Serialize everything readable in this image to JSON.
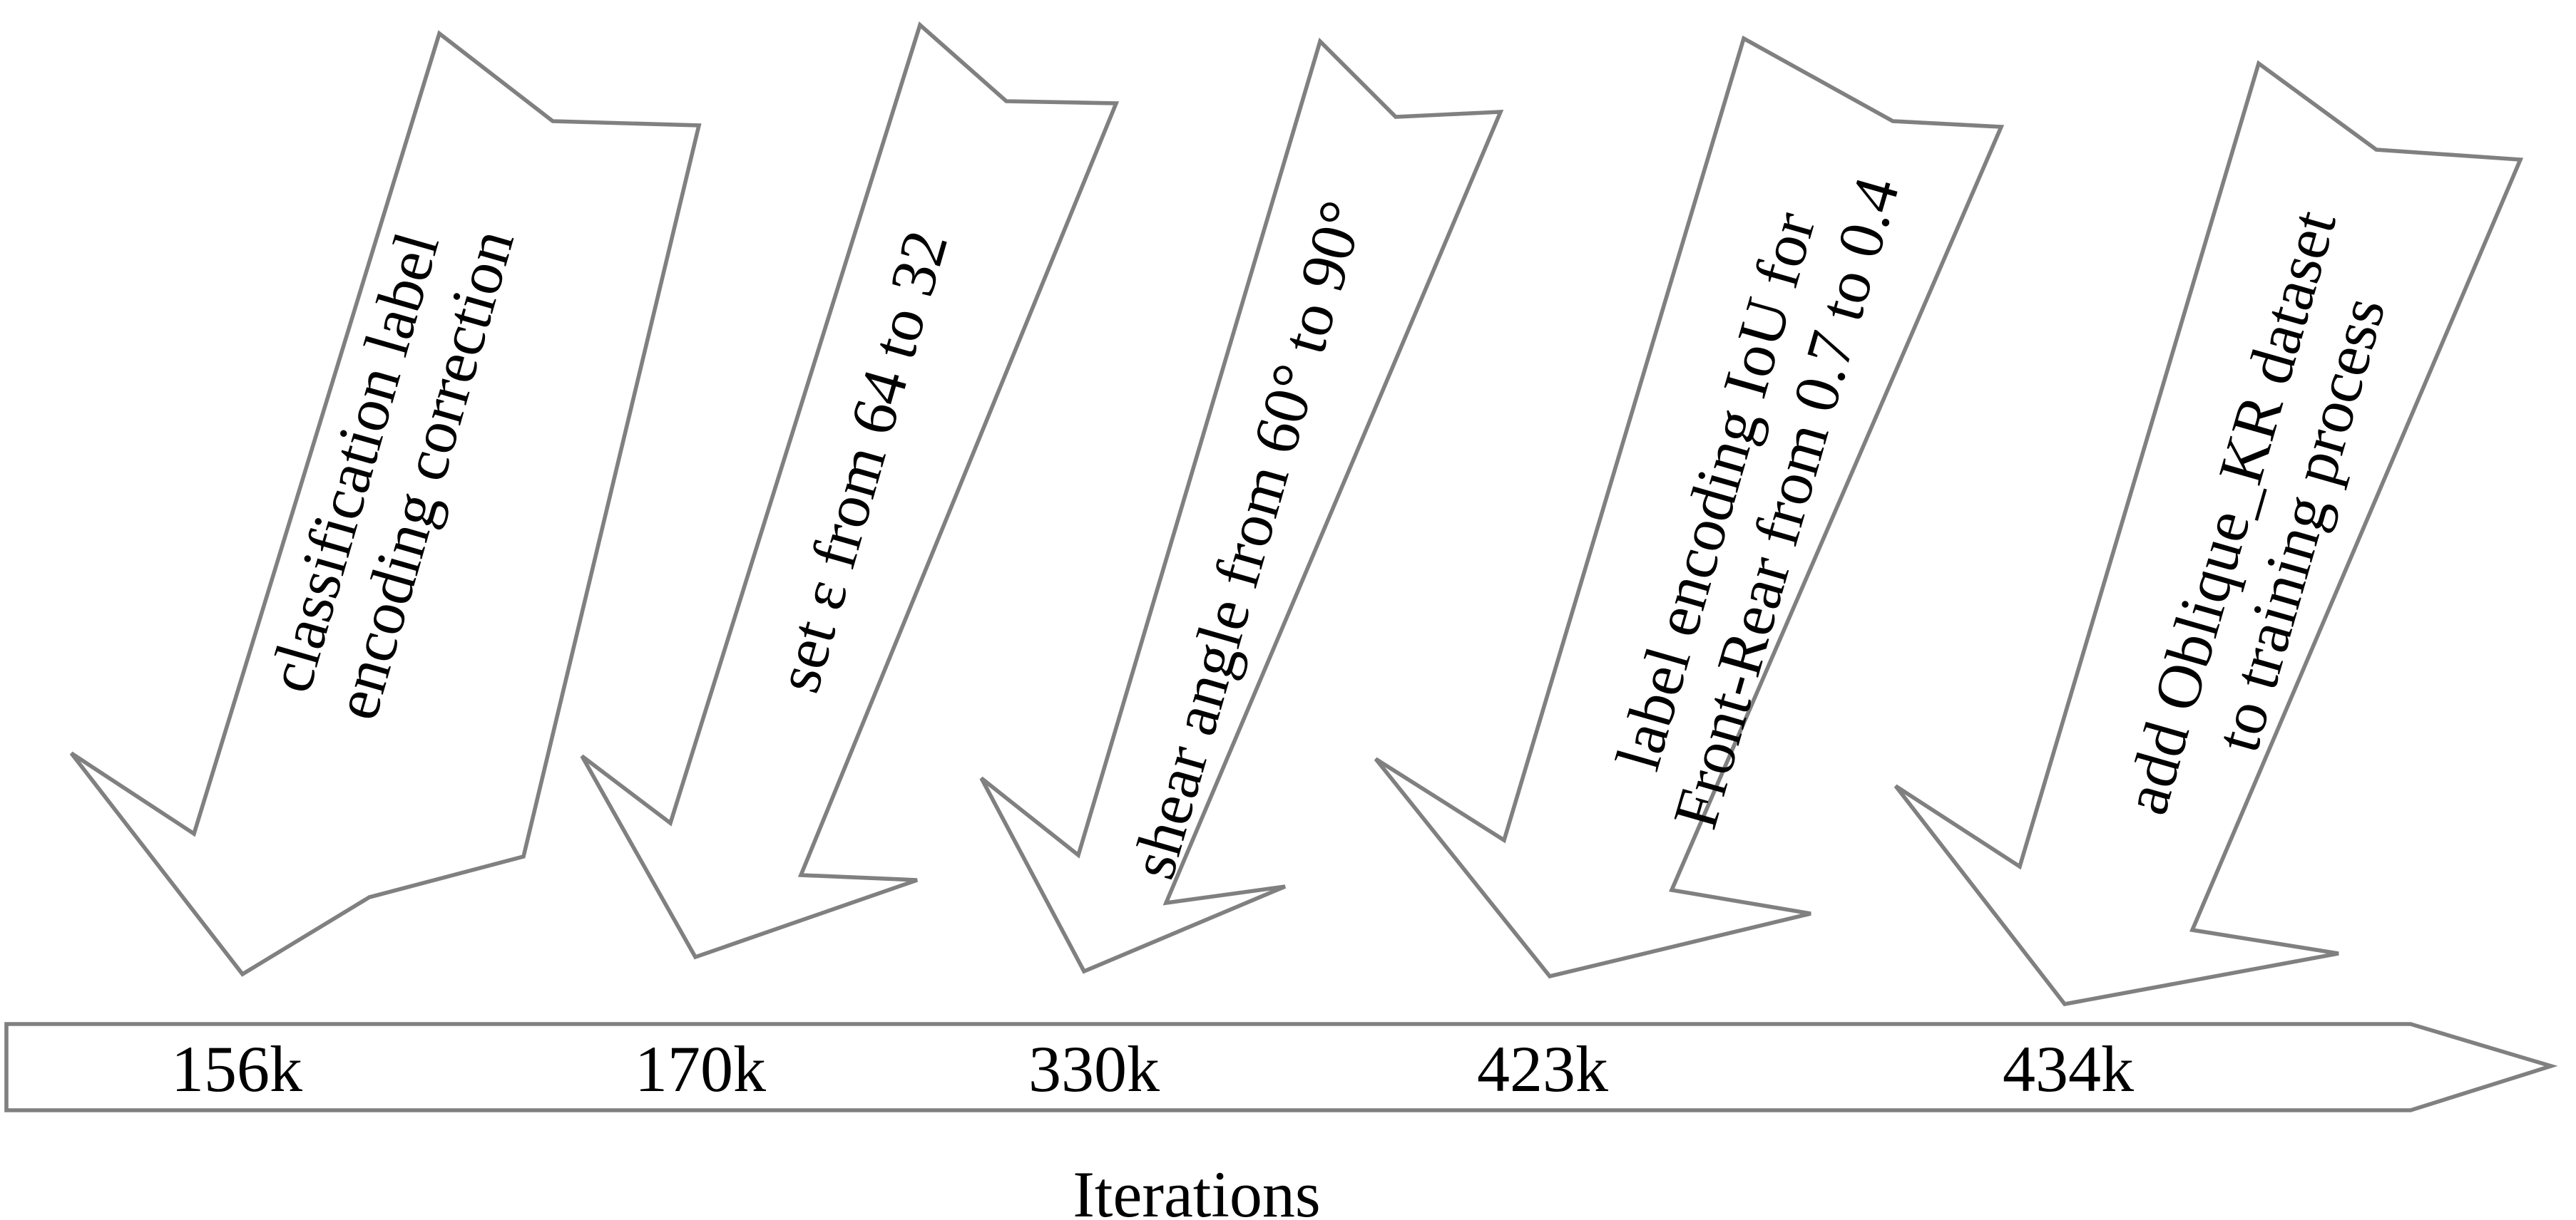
{
  "diagram": {
    "axis_label": "Iterations",
    "colors": {
      "outline": "#808080",
      "fill": "#ffffff",
      "text": "#000000"
    },
    "milestones": [
      {
        "iteration": "156k",
        "lines": [
          "classification label",
          "encoding correction"
        ]
      },
      {
        "iteration": "170k",
        "lines": [
          "set ε from 64 to 32"
        ]
      },
      {
        "iteration": "330k",
        "lines": [
          "shear angle from 60° to 90°"
        ]
      },
      {
        "iteration": "423k",
        "lines": [
          "label encoding IoU for",
          "Front-Rear from 0.7 to 0.4"
        ]
      },
      {
        "iteration": "434k",
        "lines": [
          "add Oblique_KR dataset",
          "to training process"
        ]
      }
    ]
  }
}
